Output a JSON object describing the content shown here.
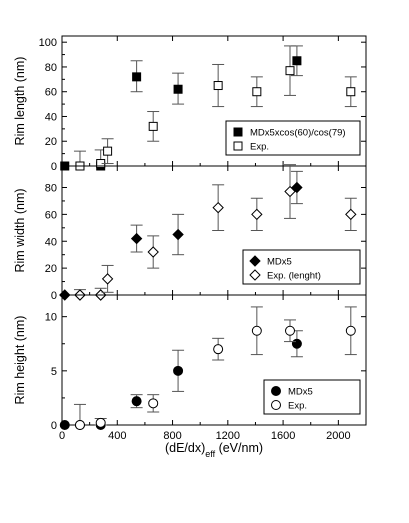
{
  "chart_data": [
    {
      "type": "scatter",
      "panel": "top",
      "ylabel": "Rim length (nm)",
      "xlim": [
        0,
        2200
      ],
      "ylim": [
        0,
        105
      ],
      "yticks": [
        0,
        20,
        40,
        60,
        80,
        100
      ],
      "grid": false,
      "legend_position": "bottom-right",
      "series": [
        {
          "name": "MDx5xcos(60)/cos(79)",
          "marker": "square-filled",
          "points": [
            {
              "x": 20,
              "y": 0
            },
            {
              "x": 130,
              "y": 0
            },
            {
              "x": 280,
              "y": 0
            },
            {
              "x": 540,
              "y": 72,
              "err_low": 12,
              "err_high": 13
            },
            {
              "x": 840,
              "y": 62,
              "err_low": 12,
              "err_high": 13
            },
            {
              "x": 1700,
              "y": 85,
              "err_low": 12,
              "err_high": 12
            }
          ]
        },
        {
          "name": "Exp.",
          "marker": "square-open",
          "points": [
            {
              "x": 130,
              "y": 0,
              "err_low": 0,
              "err_high": 12
            },
            {
              "x": 280,
              "y": 2,
              "err_low": 2,
              "err_high": 11
            },
            {
              "x": 330,
              "y": 12,
              "err_low": 10,
              "err_high": 10
            },
            {
              "x": 660,
              "y": 32,
              "err_low": 12,
              "err_high": 12
            },
            {
              "x": 1130,
              "y": 65,
              "err_low": 17,
              "err_high": 17
            },
            {
              "x": 1410,
              "y": 60,
              "err_low": 12,
              "err_high": 12
            },
            {
              "x": 1650,
              "y": 77,
              "err_low": 20,
              "err_high": 20
            },
            {
              "x": 2090,
              "y": 60,
              "err_low": 12,
              "err_high": 12
            }
          ]
        }
      ]
    },
    {
      "type": "scatter",
      "panel": "middle",
      "ylabel": "Rim width (nm)",
      "xlim": [
        0,
        2200
      ],
      "ylim": [
        0,
        96
      ],
      "yticks": [
        0,
        20,
        40,
        60,
        80
      ],
      "grid": false,
      "legend_position": "bottom-right",
      "series": [
        {
          "name": "MDx5",
          "marker": "diamond-filled",
          "points": [
            {
              "x": 20,
              "y": 0
            },
            {
              "x": 130,
              "y": 0
            },
            {
              "x": 280,
              "y": 0
            },
            {
              "x": 540,
              "y": 42,
              "err_low": 10,
              "err_high": 10
            },
            {
              "x": 840,
              "y": 45,
              "err_low": 15,
              "err_high": 15
            },
            {
              "x": 1700,
              "y": 80,
              "err_low": 12,
              "err_high": 12
            }
          ]
        },
        {
          "name": "Exp. (lenght)",
          "marker": "diamond-open",
          "points": [
            {
              "x": 130,
              "y": 0,
              "err_low": 0,
              "err_high": 4
            },
            {
              "x": 280,
              "y": 0,
              "err_low": 0,
              "err_high": 5
            },
            {
              "x": 330,
              "y": 12,
              "err_low": 10,
              "err_high": 10
            },
            {
              "x": 660,
              "y": 32,
              "err_low": 12,
              "err_high": 12
            },
            {
              "x": 1130,
              "y": 65,
              "err_low": 17,
              "err_high": 17
            },
            {
              "x": 1410,
              "y": 60,
              "err_low": 12,
              "err_high": 12
            },
            {
              "x": 1650,
              "y": 77,
              "err_low": 20,
              "err_high": 20
            },
            {
              "x": 2090,
              "y": 60,
              "err_low": 12,
              "err_high": 12
            }
          ]
        }
      ]
    },
    {
      "type": "scatter",
      "panel": "bottom",
      "ylabel": "Rim height (nm)",
      "xlabel_main": "(dE/dx)",
      "xlabel_sub": "eff",
      "xlabel_units": " (eV/nm)",
      "xlim": [
        0,
        2200
      ],
      "xticks": [
        0,
        400,
        800,
        1200,
        1600,
        2000
      ],
      "ylim": [
        0,
        12
      ],
      "yticks": [
        0,
        5,
        10
      ],
      "grid": false,
      "legend_position": "bottom-right",
      "series": [
        {
          "name": "MDx5",
          "marker": "circle-filled",
          "points": [
            {
              "x": 20,
              "y": 0
            },
            {
              "x": 130,
              "y": 0
            },
            {
              "x": 280,
              "y": 0
            },
            {
              "x": 540,
              "y": 2.2,
              "err_low": 0.6,
              "err_high": 0.6
            },
            {
              "x": 840,
              "y": 5.0,
              "err_low": 1.9,
              "err_high": 1.9
            },
            {
              "x": 1700,
              "y": 7.5,
              "err_low": 1.2,
              "err_high": 1.2
            }
          ]
        },
        {
          "name": "Exp.",
          "marker": "circle-open",
          "points": [
            {
              "x": 130,
              "y": 0,
              "err_low": 0,
              "err_high": 1.9
            },
            {
              "x": 280,
              "y": 0.2,
              "err_low": 0.2,
              "err_high": 0.4
            },
            {
              "x": 660,
              "y": 2.0,
              "err_low": 0.8,
              "err_high": 0.8
            },
            {
              "x": 1130,
              "y": 7.0,
              "err_low": 1.0,
              "err_high": 1.0
            },
            {
              "x": 1410,
              "y": 8.7,
              "err_low": 2.2,
              "err_high": 2.2
            },
            {
              "x": 1650,
              "y": 8.7,
              "err_low": 1.0,
              "err_high": 1.0
            },
            {
              "x": 2090,
              "y": 8.7,
              "err_low": 2.2,
              "err_high": 2.2
            }
          ]
        }
      ]
    }
  ]
}
